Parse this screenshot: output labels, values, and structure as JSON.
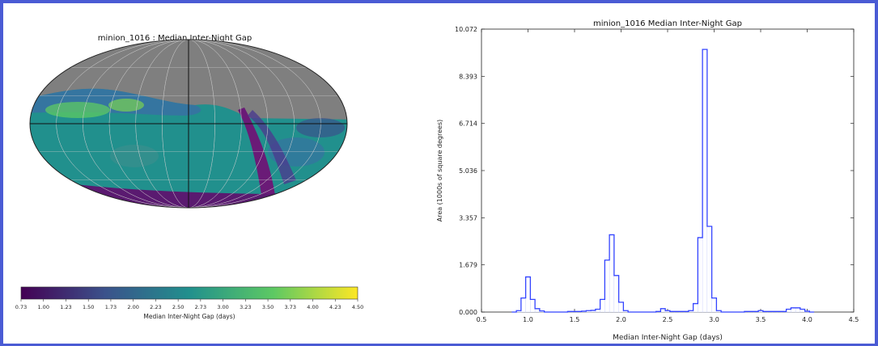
{
  "colors": {
    "border": "#4a5bd4",
    "masked_sky": "#7f7f7f",
    "histogram_line": "#3344ff",
    "colormap": [
      "#440154",
      "#3b528b",
      "#21908d",
      "#5dc963",
      "#fde725"
    ]
  },
  "skymap": {
    "title": "minion_1016 : Median Inter-Night Gap",
    "colorbar_label": "Median Inter-Night Gap (days)",
    "colorbar_ticks": [
      "0.73",
      "1.00",
      "1.23",
      "1.50",
      "1.73",
      "2.00",
      "2.23",
      "2.50",
      "2.73",
      "3.00",
      "3.23",
      "3.50",
      "3.73",
      "4.00",
      "4.23",
      "4.50"
    ],
    "projection": "Mollweide",
    "colormap_name": "viridis"
  },
  "chart_data": {
    "type": "bar",
    "title": "minion_1016   Median Inter-Night Gap",
    "xlabel": "Median Inter-Night Gap (days)",
    "ylabel": "Area (1000s of square degrees)",
    "xlim": [
      0.5,
      4.5
    ],
    "ylim": [
      0,
      10.072
    ],
    "xticks": [
      "0.5",
      "1.0",
      "1.5",
      "2.0",
      "2.5",
      "3.0",
      "3.5",
      "4.0",
      "4.5"
    ],
    "yticks": [
      "0.000",
      "1.679",
      "3.357",
      "5.036",
      "6.714",
      "8.393",
      "10.072"
    ],
    "bin_width": 0.05,
    "bins_x": [
      0.85,
      0.9,
      0.95,
      1.0,
      1.05,
      1.1,
      1.15,
      1.2,
      1.25,
      1.3,
      1.35,
      1.4,
      1.45,
      1.5,
      1.55,
      1.6,
      1.65,
      1.7,
      1.75,
      1.8,
      1.85,
      1.9,
      1.95,
      2.0,
      2.05,
      2.1,
      2.15,
      2.2,
      2.25,
      2.3,
      2.35,
      2.4,
      2.45,
      2.5,
      2.55,
      2.6,
      2.65,
      2.7,
      2.75,
      2.8,
      2.85,
      2.9,
      2.95,
      3.0,
      3.05,
      3.1,
      3.15,
      3.2,
      3.25,
      3.3,
      3.35,
      3.4,
      3.45,
      3.5,
      3.55,
      3.6,
      3.65,
      3.7,
      3.75,
      3.8,
      3.85,
      3.9,
      3.95,
      4.0,
      4.05
    ],
    "values": [
      0,
      0.05,
      0.5,
      1.25,
      0.45,
      0.12,
      0.04,
      0,
      0,
      0,
      0,
      0,
      0.02,
      0.02,
      0.02,
      0.03,
      0.05,
      0.06,
      0.1,
      0.45,
      1.85,
      2.75,
      1.3,
      0.35,
      0.05,
      0,
      0,
      0,
      0,
      0,
      0,
      0.02,
      0.12,
      0.05,
      0.02,
      0.02,
      0.02,
      0.02,
      0.05,
      0.3,
      2.65,
      9.35,
      3.05,
      0.5,
      0.05,
      0,
      0,
      0,
      0,
      0,
      0.02,
      0.02,
      0.02,
      0.05,
      0.02,
      0.02,
      0.02,
      0.02,
      0.02,
      0.1,
      0.15,
      0.15,
      0.1,
      0.03,
      0
    ]
  }
}
